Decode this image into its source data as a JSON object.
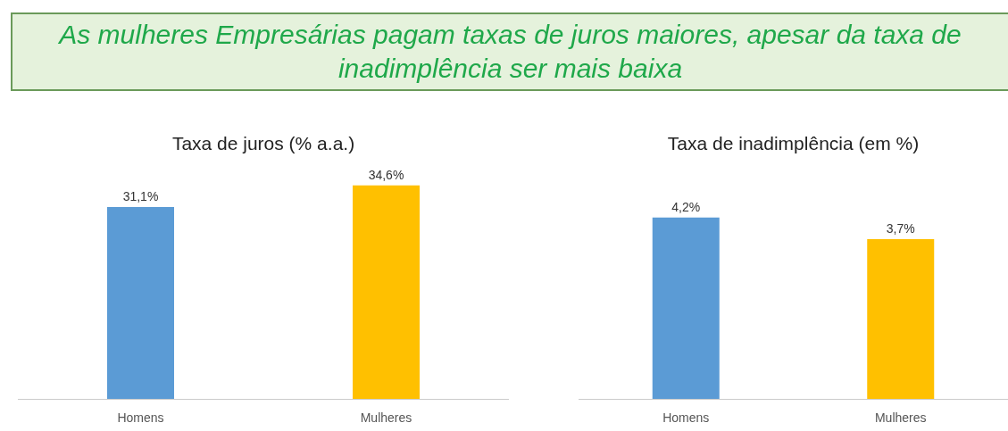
{
  "chart_data": [
    {
      "type": "other",
      "title": "As mulheres Empresárias pagam taxas de juros maiores, apesar da taxa de inadimplência ser mais baixa"
    },
    {
      "type": "bar",
      "title": "Taxa de juros (% a.a.)",
      "categories": [
        "Homens",
        "Mulheres"
      ],
      "values": [
        31.1,
        34.6
      ],
      "colors": [
        "#5b9bd5",
        "#ffc000"
      ],
      "value_labels": [
        "31,1%",
        "34,6%"
      ]
    },
    {
      "type": "bar",
      "title": "Taxa de inadimplência (em %)",
      "categories": [
        "Homens",
        "Mulheres"
      ],
      "values": [
        4.2,
        3.7
      ],
      "colors": [
        "#5b9bd5",
        "#ffc000"
      ],
      "value_labels": [
        "4,2%",
        "3,7%"
      ]
    }
  ]
}
